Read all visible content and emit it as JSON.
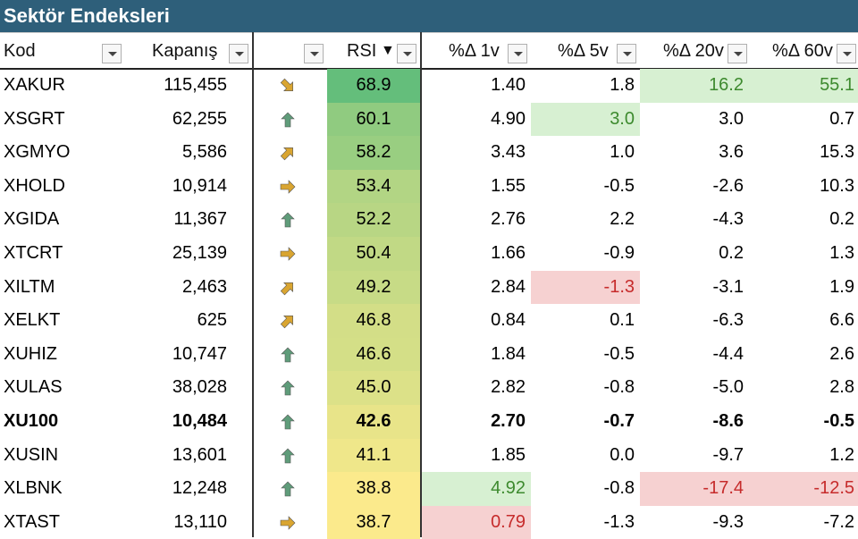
{
  "title": "Sektör Endeksleri",
  "headers": {
    "kod": "Kod",
    "kapanis": "Kapanış",
    "rsi": "RSI",
    "rsi_sort": "▼",
    "d1": "%Δ 1v",
    "d5": "%Δ 5v",
    "d20": "%Δ 20v",
    "d60": "%Δ 60v"
  },
  "colors": {
    "title_bg": "#2e5f7a",
    "good_bg": "#d7f0d2",
    "good_text": "#3d8a2e",
    "bad_bg": "#f6d1d1",
    "bad_text": "#c62b2b",
    "arrow_up": "#5f9c7a",
    "arrow_side": "#d9a531"
  },
  "rows": [
    {
      "kod": "XAKUR",
      "kapanis": "115,455",
      "trend": "arrow-down-right",
      "rsi": "68.9",
      "d1": "1.40",
      "d5": "1.8",
      "d20": "16.2",
      "d60": "55.1",
      "hl": {
        "d20": "good",
        "d60": "good"
      }
    },
    {
      "kod": "XSGRT",
      "kapanis": "62,255",
      "trend": "arrow-up",
      "rsi": "60.1",
      "d1": "4.90",
      "d5": "3.0",
      "d20": "3.0",
      "d60": "0.7",
      "hl": {
        "d5": "good"
      }
    },
    {
      "kod": "XGMYO",
      "kapanis": "5,586",
      "trend": "arrow-up-right",
      "rsi": "58.2",
      "d1": "3.43",
      "d5": "1.0",
      "d20": "3.6",
      "d60": "15.3",
      "hl": {}
    },
    {
      "kod": "XHOLD",
      "kapanis": "10,914",
      "trend": "arrow-right",
      "rsi": "53.4",
      "d1": "1.55",
      "d5": "-0.5",
      "d20": "-2.6",
      "d60": "10.3",
      "hl": {}
    },
    {
      "kod": "XGIDA",
      "kapanis": "11,367",
      "trend": "arrow-up",
      "rsi": "52.2",
      "d1": "2.76",
      "d5": "2.2",
      "d20": "-4.3",
      "d60": "0.2",
      "hl": {}
    },
    {
      "kod": "XTCRT",
      "kapanis": "25,139",
      "trend": "arrow-right",
      "rsi": "50.4",
      "d1": "1.66",
      "d5": "-0.9",
      "d20": "0.2",
      "d60": "1.3",
      "hl": {}
    },
    {
      "kod": "XILTM",
      "kapanis": "2,463",
      "trend": "arrow-up-right",
      "rsi": "49.2",
      "d1": "2.84",
      "d5": "-1.3",
      "d20": "-3.1",
      "d60": "1.9",
      "hl": {
        "d5": "bad"
      }
    },
    {
      "kod": "XELKT",
      "kapanis": "625",
      "trend": "arrow-up-right",
      "rsi": "46.8",
      "d1": "0.84",
      "d5": "0.1",
      "d20": "-6.3",
      "d60": "6.6",
      "hl": {}
    },
    {
      "kod": "XUHIZ",
      "kapanis": "10,747",
      "trend": "arrow-up",
      "rsi": "46.6",
      "d1": "1.84",
      "d5": "-0.5",
      "d20": "-4.4",
      "d60": "2.6",
      "hl": {}
    },
    {
      "kod": "XULAS",
      "kapanis": "38,028",
      "trend": "arrow-up",
      "rsi": "45.0",
      "d1": "2.82",
      "d5": "-0.8",
      "d20": "-5.0",
      "d60": "2.8",
      "hl": {}
    },
    {
      "kod": "XU100",
      "kapanis": "10,484",
      "trend": "arrow-up",
      "rsi": "42.6",
      "d1": "2.70",
      "d5": "-0.7",
      "d20": "-8.6",
      "d60": "-0.5",
      "bold": true,
      "hl": {}
    },
    {
      "kod": "XUSIN",
      "kapanis": "13,601",
      "trend": "arrow-up",
      "rsi": "41.1",
      "d1": "1.85",
      "d5": "0.0",
      "d20": "-9.7",
      "d60": "1.2",
      "hl": {}
    },
    {
      "kod": "XLBNK",
      "kapanis": "12,248",
      "trend": "arrow-up",
      "rsi": "38.8",
      "d1": "4.92",
      "d5": "-0.8",
      "d20": "-17.4",
      "d60": "-12.5",
      "hl": {
        "d1": "good",
        "d20": "bad",
        "d60": "bad"
      }
    },
    {
      "kod": "XTAST",
      "kapanis": "13,110",
      "trend": "arrow-right",
      "rsi": "38.7",
      "d1": "0.79",
      "d5": "-1.3",
      "d20": "-9.3",
      "d60": "-7.2",
      "hl": {
        "d1": "bad"
      }
    }
  ]
}
